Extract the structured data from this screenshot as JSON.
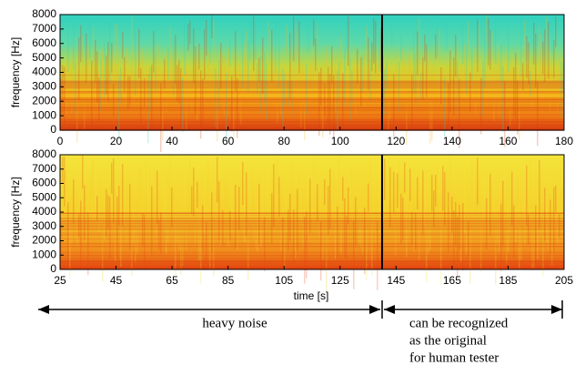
{
  "chart_data": [
    {
      "type": "spectrogram",
      "ylabel": "frequency [Hz]",
      "xlim": [
        0,
        180
      ],
      "xticks": [
        0,
        20,
        40,
        60,
        80,
        100,
        120,
        140,
        160,
        180
      ],
      "ylim": [
        0,
        8000
      ],
      "yticks": [
        0,
        1000,
        2000,
        3000,
        4000,
        5000,
        6000,
        7000,
        8000
      ],
      "marker_x": 115,
      "palette": [
        "#d83a10",
        "#f6b81a",
        "#2fd1c0"
      ]
    },
    {
      "type": "spectrogram",
      "ylabel": "frequency [Hz]",
      "xlabel": "time [s]",
      "xlim": [
        25,
        205
      ],
      "xticks": [
        25,
        45,
        65,
        85,
        105,
        125,
        145,
        165,
        185,
        205
      ],
      "ylim": [
        0,
        8000
      ],
      "yticks": [
        0,
        1000,
        2000,
        3000,
        4000,
        5000,
        6000,
        7000,
        8000
      ],
      "marker_x": 140,
      "palette": [
        "#e2420f",
        "#f5cf2a",
        "#f4e43a"
      ]
    }
  ],
  "annotations": {
    "left": "heavy noise",
    "right": [
      "can be recognized",
      "as the original",
      "for human tester"
    ]
  }
}
